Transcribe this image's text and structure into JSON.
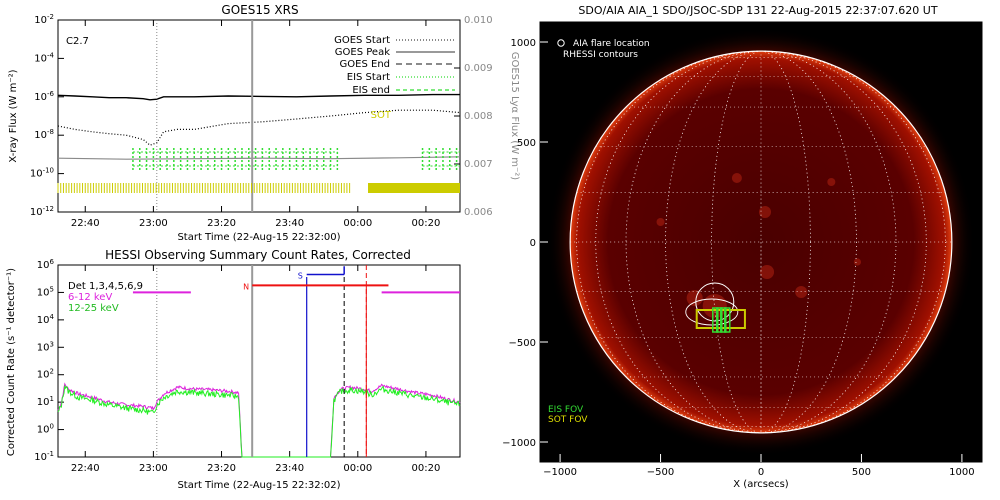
{
  "colors": {
    "goes_long": "#000000",
    "goes_short": "#000000",
    "lya": "#8a8a8a",
    "eis": "#33dd33",
    "sot": "#cccc00",
    "det_low": "#dd22dd",
    "det_mid": "#22ee22",
    "attenuator_n": "#ee1111",
    "segment_s": "#1111cc",
    "aia_bg": "#000000",
    "aia_disk": "#5a0000",
    "aia_fov_eis": "#33dd33",
    "aia_fov_sot": "#cccc00",
    "rhessi": "#ffffff"
  },
  "goes_panel": {
    "title": "GOES15 XRS",
    "ylabel_left": "X-ray Flux (W m⁻²)",
    "ylabel_right": "GOES15 Lyα Flux (W m⁻²)",
    "xlabel": "Start Time (22-Aug-15 22:32:00)",
    "class_label": "C2.7",
    "y_exponents": [
      "-2",
      "-4",
      "-6",
      "-8",
      "-10",
      "-12"
    ],
    "y_right_ticks": [
      "0.010",
      "0.009",
      "0.008",
      "0.007",
      "0.006"
    ],
    "x_ticks": [
      "22:40",
      "23:00",
      "23:20",
      "23:40",
      "00:00",
      "00:20"
    ],
    "legend": [
      {
        "label": "GOES Start",
        "style": "dotted"
      },
      {
        "label": "GOES Peak",
        "style": "solid"
      },
      {
        "label": "GOES End",
        "style": "dashed"
      },
      {
        "label": "EIS Start",
        "style": "green-dotted"
      },
      {
        "label": "EIS end",
        "style": "green-dashed"
      },
      {
        "label": "SOT",
        "style": "yellow"
      }
    ]
  },
  "hessi_panel": {
    "title": "HESSI Observing Summary Count Rates, Corrected",
    "ylabel": "Corrected Count Rate (s⁻¹ detector⁻¹)",
    "xlabel": "Start Time (22-Aug-15 22:32:02)",
    "y_exponents": [
      "6",
      "5",
      "4",
      "3",
      "2",
      "1",
      "0",
      "-1"
    ],
    "x_ticks": [
      "22:40",
      "23:00",
      "23:20",
      "23:40",
      "00:00",
      "00:20"
    ],
    "legend_det": "Det 1,3,4,5,6,9",
    "legend_low": "6-12 keV",
    "legend_mid": "12-25 keV",
    "label_n": "N",
    "label_s": "S"
  },
  "aia_panel": {
    "title": "SDO/AIA AIA_1 SDO/JSOC-SDP 131 22-Aug-2015 22:37:07.620 UT",
    "legend_line1": "AIA flare location",
    "legend_line2": "RHESSI contours",
    "fov_eis": "EIS FOV",
    "fov_sot": "SOT FOV",
    "xlabel": "X (arcsecs)",
    "x_ticks": [
      "−1000",
      "−500",
      "0",
      "500",
      "1000"
    ],
    "y_ticks": [
      "1000",
      "500",
      "0",
      "−500",
      "−1000"
    ]
  },
  "chart_data": [
    {
      "type": "line",
      "title": "GOES15 XRS",
      "xlabel": "Start Time (22-Aug-15 22:32:00)",
      "ylabel": "X-ray Flux (W m⁻²)",
      "y_scale": "log",
      "ylim": [
        1e-12,
        0.01
      ],
      "y2label": "GOES15 Lyα Flux (W m⁻²)",
      "y2lim": [
        0.006,
        0.01
      ],
      "xlim_minutes": [
        0,
        118
      ],
      "x_origin": "22:32:00",
      "series": [
        {
          "name": "",
          "x": [
            0,
            5,
            10,
            15,
            20,
            25,
            27,
            29,
            31,
            35,
            40,
            50,
            60,
            70,
            80,
            90,
            100,
            110,
            118
          ],
          "y": [
            1.2e-06,
            1.1e-06,
            1e-06,
            9e-07,
            9e-07,
            8e-07,
            7e-07,
            7.5e-07,
            1e-06,
            1e-06,
            1e-06,
            1.1e-06,
            1.05e-06,
            1e-06,
            1.1e-06,
            1.2e-06,
            1.2e-06,
            1.3e-06,
            1.3e-06
          ]
        },
        {
          "name": "",
          "x": [
            0,
            5,
            10,
            15,
            20,
            25,
            27,
            29,
            31,
            35,
            40,
            50,
            60,
            70,
            80,
            90,
            100,
            110,
            118
          ],
          "y": [
            3e-08,
            2e-08,
            1.5e-08,
            1.2e-08,
            1e-08,
            6e-09,
            3e-09,
            4e-09,
            1.5e-08,
            2e-08,
            2e-08,
            4e-08,
            5e-08,
            7e-08,
            1e-07,
            1.5e-07,
            2e-07,
            2e-07,
            1.5e-07
          ]
        },
        {
          "name": "",
          "x": [
            0,
            20,
            40,
            60,
            80,
            100,
            118
          ],
          "y": [
            0.00712,
            0.0071,
            0.00711,
            0.00712,
            0.00711,
            0.00713,
            0.00715
          ]
        }
      ],
      "markers_minutes": {
        "goes_start": 29,
        "goes_peak": 57
      },
      "eis_intervals_minutes": [
        [
          22,
          82
        ],
        [
          107,
          118
        ]
      ],
      "sot_intervals_minutes": [
        [
          0,
          86
        ],
        [
          91,
          118
        ]
      ]
    },
    {
      "type": "line",
      "title": "HESSI Observing Summary Count Rates, Corrected",
      "xlabel": "Start Time (22-Aug-15 22:32:02)",
      "ylabel": "Corrected Count Rate (s⁻¹ detector⁻¹)",
      "y_scale": "log",
      "ylim": [
        0.1,
        1000000.0
      ],
      "xlim_minutes": [
        0,
        118
      ],
      "series": [
        {
          "name": "6-12 keV",
          "x": [
            0,
            1,
            2,
            3,
            6,
            10,
            15,
            20,
            25,
            28,
            29,
            31,
            35,
            40,
            45,
            50,
            53,
            54,
            56,
            57,
            58,
            80,
            81,
            83,
            86,
            88,
            90,
            92,
            95,
            100,
            105,
            110,
            114,
            118
          ],
          "y": [
            5,
            10,
            45,
            30,
            20,
            15,
            10,
            8,
            7,
            6,
            10,
            20,
            35,
            30,
            28,
            25,
            22,
            0.1,
            0.1,
            0.1,
            0.1,
            0.1,
            15,
            30,
            35,
            32,
            30,
            25,
            40,
            30,
            22,
            18,
            13,
            10
          ]
        },
        {
          "name": "12-25 keV",
          "x": [
            0,
            1,
            2,
            3,
            6,
            10,
            15,
            20,
            25,
            28,
            29,
            31,
            35,
            40,
            45,
            50,
            53,
            54,
            56,
            57,
            58,
            80,
            81,
            83,
            86,
            88,
            90,
            92,
            95,
            100,
            105,
            110,
            114,
            118
          ],
          "y": [
            4,
            8,
            40,
            25,
            15,
            12,
            8,
            6,
            5,
            4,
            8,
            15,
            25,
            22,
            20,
            18,
            16,
            0.1,
            0.1,
            0.1,
            0.1,
            0.1,
            12,
            25,
            28,
            26,
            24,
            18,
            30,
            22,
            16,
            13,
            10,
            8
          ]
        }
      ],
      "attenuator_n_minutes": [
        57,
        97
      ],
      "segments_minutes": {
        "low_before": [
          22,
          39
        ],
        "low_after": [
          95,
          118
        ],
        "n": [
          57,
          97
        ],
        "s": [
          73,
          84
        ]
      }
    },
    {
      "type": "scatter",
      "title": "SDO/AIA AIA_1 SDO/JSOC-SDP 131 22-Aug-2015 22:37:07.620 UT",
      "xlabel": "X (arcsecs)",
      "xlim": [
        -1100,
        1100
      ],
      "ylim": [
        -1100,
        1100
      ],
      "solar_radius_arcsec": 950,
      "flare_location": [
        -230,
        -300
      ],
      "fov_eis": {
        "x": [
          -240,
          -175
        ],
        "y": [
          -450,
          -330
        ]
      },
      "fov_sot": {
        "x": [
          -320,
          -80
        ],
        "y": [
          -430,
          -340
        ]
      }
    }
  ]
}
